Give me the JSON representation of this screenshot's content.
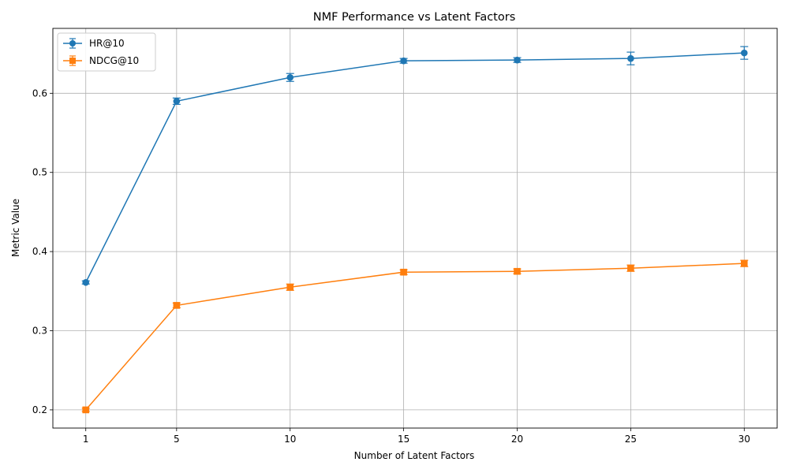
{
  "chart_data": {
    "type": "line",
    "title": "NMF Performance vs Latent Factors",
    "xlabel": "Number of Latent Factors",
    "ylabel": "Metric Value",
    "x": [
      1,
      5,
      10,
      15,
      20,
      25,
      30
    ],
    "x_ticks": [
      "1",
      "5",
      "10",
      "15",
      "20",
      "25",
      "30"
    ],
    "xlim": [
      -0.45,
      31.45
    ],
    "ylim": [
      0.177,
      0.682
    ],
    "y_ticks": [
      0.2,
      0.3,
      0.4,
      0.5,
      0.6
    ],
    "y_tick_labels": [
      "0.2",
      "0.3",
      "0.4",
      "0.5",
      "0.6"
    ],
    "grid": true,
    "legend_position": "upper-left",
    "series": [
      {
        "name": "HR@10",
        "marker": "circle",
        "color": "#1f77b4",
        "values": [
          0.361,
          0.59,
          0.62,
          0.641,
          0.642,
          0.644,
          0.651
        ],
        "errors": [
          0.002,
          0.004,
          0.005,
          0.003,
          0.003,
          0.008,
          0.008
        ]
      },
      {
        "name": "NDCG@10",
        "marker": "square",
        "color": "#ff7f0e",
        "values": [
          0.2,
          0.332,
          0.355,
          0.374,
          0.375,
          0.379,
          0.385
        ],
        "errors": [
          0.002,
          0.003,
          0.004,
          0.003,
          0.003,
          0.004,
          0.004
        ]
      }
    ]
  }
}
